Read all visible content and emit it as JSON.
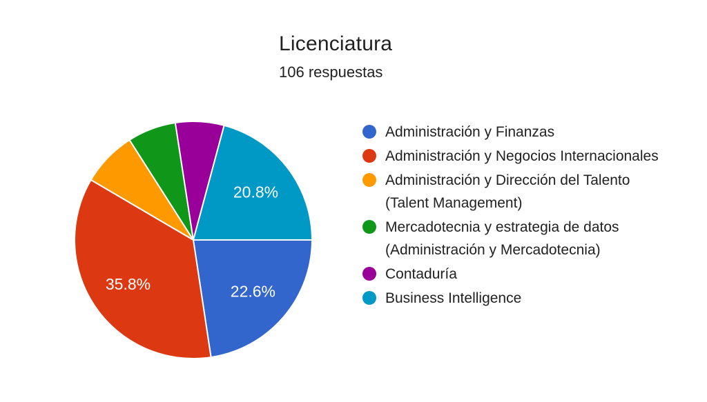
{
  "header": {
    "title": "Licenciatura",
    "subtitle": "106 respuestas"
  },
  "chart_data": {
    "type": "pie",
    "title": "Licenciatura",
    "subtitle": "106 respuestas",
    "total_responses": 106,
    "start_angle_deg": 0,
    "direction": "clockwise",
    "legend_position": "right",
    "slices": [
      {
        "label": "Administración y Finanzas",
        "pct": 22.6,
        "display_pct": "22.6%",
        "color": "#3366CC"
      },
      {
        "label": "Administración y Negocios Internacionales",
        "pct": 35.8,
        "display_pct": "35.8%",
        "color": "#DC3912"
      },
      {
        "label": "Administración y Dirección del Talento (Talent Management)",
        "pct": 7.5,
        "display_pct": "",
        "color": "#FF9900"
      },
      {
        "label": "Mercadotecnia y estrategia de datos (Administración y Mercadotecnia)",
        "pct": 6.6,
        "display_pct": "",
        "color": "#109618"
      },
      {
        "label": "Contaduría",
        "pct": 6.6,
        "display_pct": "",
        "color": "#990099"
      },
      {
        "label": "Business Intelligence",
        "pct": 20.8,
        "display_pct": "20.8%",
        "color": "#0099C6"
      }
    ]
  }
}
